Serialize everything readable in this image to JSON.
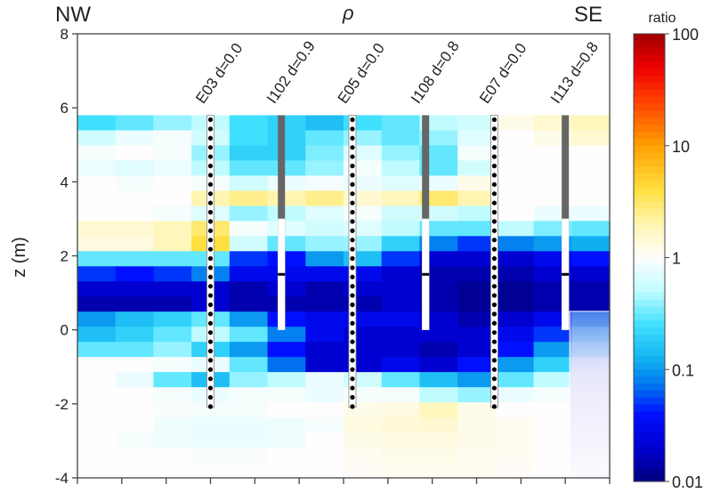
{
  "chart_data": {
    "type": "heatmap",
    "title": "ρ",
    "left_label": "NW",
    "right_label": "SE",
    "xlabel": "",
    "ylabel": "z (m)",
    "ylim": [
      -4,
      8
    ],
    "yticks": [
      "8",
      "6",
      "4",
      "2",
      "0",
      "-2",
      "-4"
    ],
    "ytick_values": [
      8,
      6,
      4,
      2,
      0,
      -2,
      -4
    ],
    "x_tick_count": 13,
    "data_top_z": 5.8,
    "colorbar": {
      "title": "ratio",
      "scale": "log",
      "range": [
        0.01,
        100
      ],
      "tick_labels": [
        "100",
        "10",
        "1",
        "0.1",
        "0.01"
      ],
      "tick_values": [
        100,
        10,
        1,
        0.1,
        0.01
      ],
      "stops": [
        {
          "v": 0.01,
          "color": "#000080"
        },
        {
          "v": 0.02,
          "color": "#0000d0"
        },
        {
          "v": 0.04,
          "color": "#0010ff"
        },
        {
          "v": 0.07,
          "color": "#0070f0"
        },
        {
          "v": 0.12,
          "color": "#10b0f0"
        },
        {
          "v": 0.25,
          "color": "#40e0ff"
        },
        {
          "v": 0.5,
          "color": "#c0fcff"
        },
        {
          "v": 1.0,
          "color": "#fffdfd"
        },
        {
          "v": 2.0,
          "color": "#fff5b0"
        },
        {
          "v": 4.0,
          "color": "#ffe040"
        },
        {
          "v": 10.0,
          "color": "#ffa000"
        },
        {
          "v": 25.0,
          "color": "#ff4000"
        },
        {
          "v": 50.0,
          "color": "#ee0000"
        },
        {
          "v": 100.0,
          "color": "#a00000"
        }
      ]
    },
    "wells": [
      {
        "label": "E03 d=0.0",
        "type": "electrode",
        "x_index": 3,
        "top_z": 5.8,
        "bottom_z": -2.1
      },
      {
        "label": "I102 d=0.9",
        "type": "injection",
        "x_index": 4.6,
        "top_z": 5.8,
        "screen_top_z": 3.0,
        "bottom_z": 0.0,
        "packer_z": 1.5
      },
      {
        "label": "E05 d=0.0",
        "type": "electrode",
        "x_index": 6.2,
        "top_z": 5.8,
        "bottom_z": -2.1
      },
      {
        "label": "I108 d=0.8",
        "type": "injection",
        "x_index": 7.85,
        "top_z": 5.8,
        "screen_top_z": 3.0,
        "bottom_z": 0.0,
        "packer_z": 1.5
      },
      {
        "label": "E07 d=0.0",
        "type": "electrode",
        "x_index": 9.4,
        "top_z": 5.8,
        "bottom_z": -2.1
      },
      {
        "label": "I113 d=0.8",
        "type": "injection",
        "x_index": 11.0,
        "top_z": 5.8,
        "screen_top_z": 3.0,
        "bottom_z": 0.0,
        "packer_z": 1.5
      }
    ],
    "masked_region": {
      "x_from_index": 11.1,
      "x_to_index": 12,
      "z_from": 0.5,
      "z_to": -4
    },
    "columns": 14,
    "z_centers": [
      5.6,
      5.2,
      4.8,
      4.4,
      4.0,
      3.6,
      3.2,
      2.8,
      2.4,
      2.0,
      1.6,
      1.2,
      0.8,
      0.4,
      0.0,
      -0.4,
      -0.8,
      -1.2,
      -1.6,
      -2.0,
      -2.4,
      -2.8,
      -3.2,
      -3.6
    ],
    "values": [
      [
        0.25,
        0.3,
        0.4,
        0.5,
        0.25,
        0.2,
        0.15,
        0.25,
        0.3,
        0.5,
        0.6,
        1.2,
        1.5,
        1.8
      ],
      [
        0.6,
        0.8,
        0.9,
        0.6,
        0.25,
        0.2,
        0.3,
        0.4,
        0.3,
        0.4,
        0.7,
        1.0,
        1.2,
        1.5
      ],
      [
        0.9,
        1.0,
        0.9,
        0.4,
        0.2,
        0.2,
        0.35,
        0.7,
        0.4,
        0.3,
        0.9,
        1.0,
        1.0,
        1.0
      ],
      [
        0.8,
        0.7,
        0.8,
        0.5,
        0.3,
        0.3,
        0.4,
        0.9,
        0.5,
        0.3,
        0.6,
        1.0,
        1.0,
        1.0
      ],
      [
        1.0,
        0.9,
        1.0,
        0.9,
        0.6,
        0.8,
        0.9,
        0.8,
        0.7,
        0.8,
        1.2,
        1.0,
        1.0,
        1.0
      ],
      [
        1.0,
        1.0,
        1.0,
        2.0,
        2.5,
        2.0,
        2.5,
        1.5,
        1.8,
        3.0,
        2.0,
        1.0,
        1.0,
        1.0
      ],
      [
        1.0,
        1.0,
        0.9,
        0.7,
        0.4,
        0.5,
        0.7,
        0.9,
        0.6,
        0.6,
        0.5,
        1.0,
        0.8,
        0.8
      ],
      [
        1.5,
        1.5,
        1.8,
        3.0,
        0.9,
        0.7,
        0.6,
        0.7,
        0.5,
        0.3,
        0.3,
        0.5,
        0.35,
        0.3
      ],
      [
        1.3,
        1.3,
        1.8,
        4.0,
        0.6,
        0.3,
        0.4,
        0.4,
        0.2,
        0.08,
        0.05,
        0.08,
        0.1,
        0.12
      ],
      [
        0.3,
        0.3,
        0.3,
        0.3,
        0.05,
        0.04,
        0.1,
        0.15,
        0.05,
        0.02,
        0.02,
        0.02,
        0.03,
        0.04
      ],
      [
        0.05,
        0.04,
        0.05,
        0.08,
        0.03,
        0.03,
        0.03,
        0.03,
        0.02,
        0.015,
        0.015,
        0.015,
        0.02,
        0.02
      ],
      [
        0.02,
        0.02,
        0.02,
        0.02,
        0.015,
        0.02,
        0.015,
        0.02,
        0.02,
        0.015,
        0.012,
        0.012,
        0.015,
        0.015
      ],
      [
        0.015,
        0.015,
        0.015,
        0.02,
        0.015,
        0.015,
        0.015,
        0.015,
        0.02,
        0.015,
        0.012,
        0.012,
        0.015,
        0.015
      ],
      [
        0.1,
        0.15,
        0.2,
        0.3,
        0.1,
        0.04,
        0.03,
        0.03,
        0.03,
        0.02,
        0.015,
        0.02,
        0.03,
        0.1
      ],
      [
        0.15,
        0.2,
        0.3,
        0.5,
        0.3,
        0.08,
        0.03,
        0.02,
        0.02,
        0.02,
        0.02,
        0.03,
        0.05,
        0.2
      ],
      [
        0.3,
        0.3,
        0.4,
        0.2,
        0.1,
        0.04,
        0.02,
        0.02,
        0.02,
        0.015,
        0.02,
        0.04,
        0.1,
        0.3
      ],
      [
        1.0,
        1.0,
        0.9,
        0.8,
        0.3,
        0.07,
        0.02,
        0.02,
        0.03,
        0.02,
        0.04,
        0.1,
        0.2,
        0.6
      ],
      [
        1.0,
        0.8,
        0.3,
        0.15,
        0.4,
        0.5,
        0.8,
        0.6,
        0.3,
        0.15,
        0.1,
        0.3,
        0.5,
        0.8
      ],
      [
        1.0,
        1.0,
        0.9,
        0.8,
        0.9,
        0.9,
        0.8,
        0.9,
        0.9,
        0.5,
        0.4,
        0.8,
        0.9,
        1.0
      ],
      [
        1.0,
        1.0,
        0.95,
        0.9,
        0.9,
        1.0,
        1.0,
        1.2,
        1.3,
        1.8,
        1.2,
        1.0,
        1.0,
        1.0
      ],
      [
        1.0,
        1.0,
        0.85,
        0.8,
        0.8,
        0.85,
        0.9,
        1.3,
        1.4,
        1.5,
        1.2,
        1.1,
        1.0,
        1.0
      ],
      [
        1.0,
        0.9,
        0.85,
        0.8,
        0.8,
        0.85,
        1.0,
        1.2,
        1.3,
        1.3,
        1.2,
        1.1,
        1.0,
        1.0
      ],
      [
        1.0,
        1.0,
        1.0,
        0.95,
        0.95,
        1.0,
        1.0,
        1.1,
        1.2,
        1.2,
        1.1,
        1.1,
        1.0,
        1.0
      ],
      [
        1.0,
        1.0,
        1.0,
        1.0,
        1.0,
        1.0,
        1.0,
        1.05,
        1.1,
        1.1,
        1.1,
        1.05,
        1.0,
        1.0
      ]
    ]
  }
}
